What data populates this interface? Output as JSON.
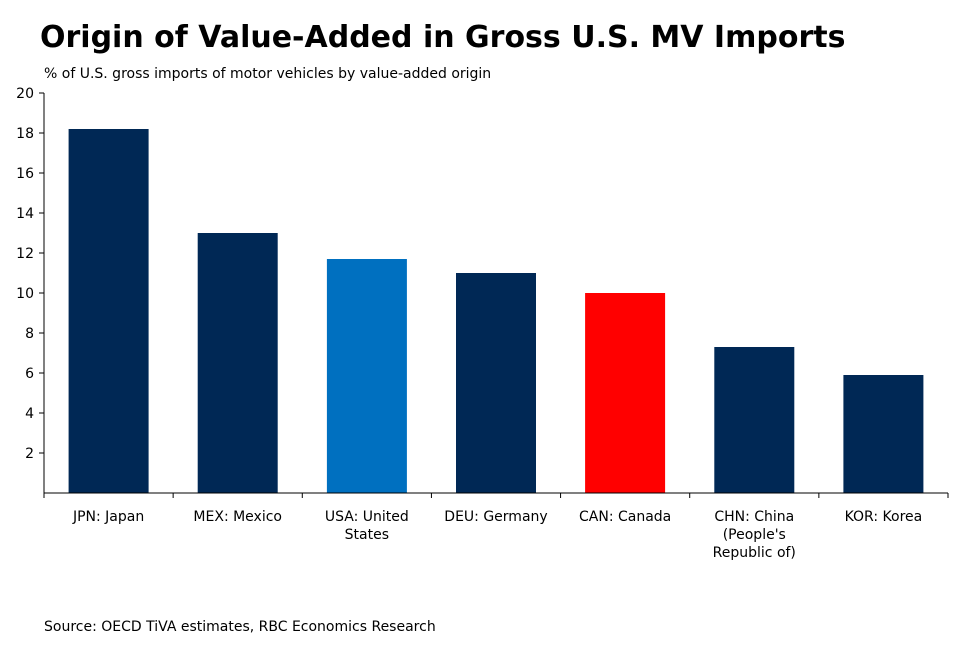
{
  "title": "Origin of Value-Added in Gross U.S. MV Imports",
  "subtitle": "% of U.S. gross imports of motor vehicles by value-added origin",
  "source": "Source: OECD TiVA estimates, RBC Economics Research",
  "colors": {
    "default": "#002855",
    "usa": "#0070C0",
    "can": "#FF0000",
    "axis": "#000000"
  },
  "chart_data": {
    "type": "bar",
    "title": "Origin of Value-Added in Gross U.S. MV Imports",
    "ylabel": "% of U.S. gross imports of motor vehicles by value-added origin",
    "xlabel": "",
    "ylim": [
      0,
      20
    ],
    "yticks": [
      2,
      4,
      6,
      8,
      10,
      12,
      14,
      16,
      18,
      20
    ],
    "grid": false,
    "categories": [
      [
        "JPN: Japan"
      ],
      [
        "MEX: Mexico"
      ],
      [
        "USA: United",
        "States"
      ],
      [
        "DEU: Germany"
      ],
      [
        "CAN: Canada"
      ],
      [
        "CHN: China",
        "(People's",
        "Republic of)"
      ],
      [
        "KOR: Korea"
      ]
    ],
    "values": [
      18.2,
      13.0,
      11.7,
      11.0,
      10.0,
      7.3,
      5.9
    ],
    "bar_colors": [
      "#002855",
      "#002855",
      "#0070C0",
      "#002855",
      "#FF0000",
      "#002855",
      "#002855"
    ]
  }
}
